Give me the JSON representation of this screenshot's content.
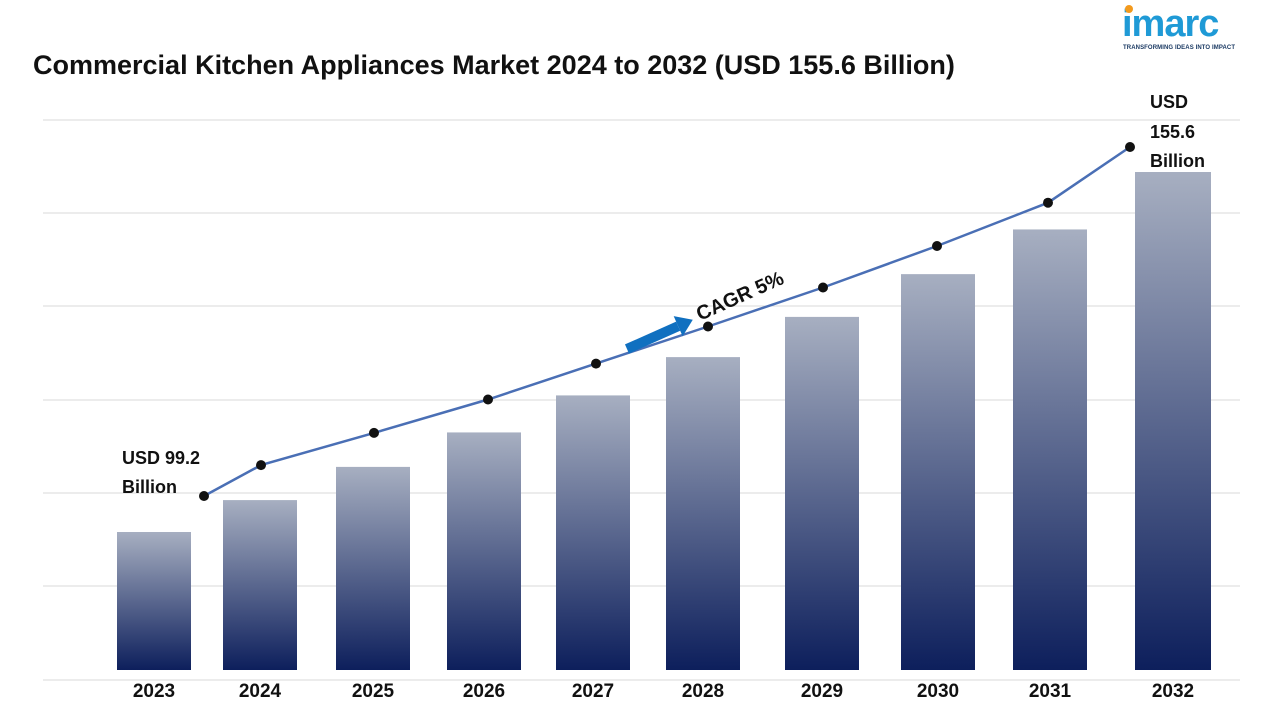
{
  "title": "Commercial Kitchen Appliances Market 2024 to 2032 (USD 155.6 Billion)",
  "logo": {
    "word": "imarc",
    "tagline": "TRANSFORMING IDEAS INTO IMPACT"
  },
  "colors": {
    "bar_top": "#a7afc1",
    "bar_bottom": "#0d1f5c",
    "line": "#4a6fb5",
    "marker": "#111111",
    "arrow": "#1070c0",
    "logo_blue": "#1f9ad6",
    "logo_orange": "#f39a1d",
    "grid": "#d9d9d9"
  },
  "chart_data": {
    "type": "bar",
    "categories": [
      "2023",
      "2024",
      "2025",
      "2026",
      "2027",
      "2028",
      "2029",
      "2030",
      "2031",
      "2032"
    ],
    "values": [
      99.2,
      104.2,
      109.4,
      114.8,
      120.6,
      126.6,
      132.9,
      139.6,
      146.6,
      155.6
    ],
    "grid": true,
    "annotations": {
      "start_lines": [
        "USD 99.2",
        "Billion"
      ],
      "end_lines": [
        "USD",
        "155.6",
        "Billion"
      ],
      "cagr": "CAGR 5%"
    }
  }
}
